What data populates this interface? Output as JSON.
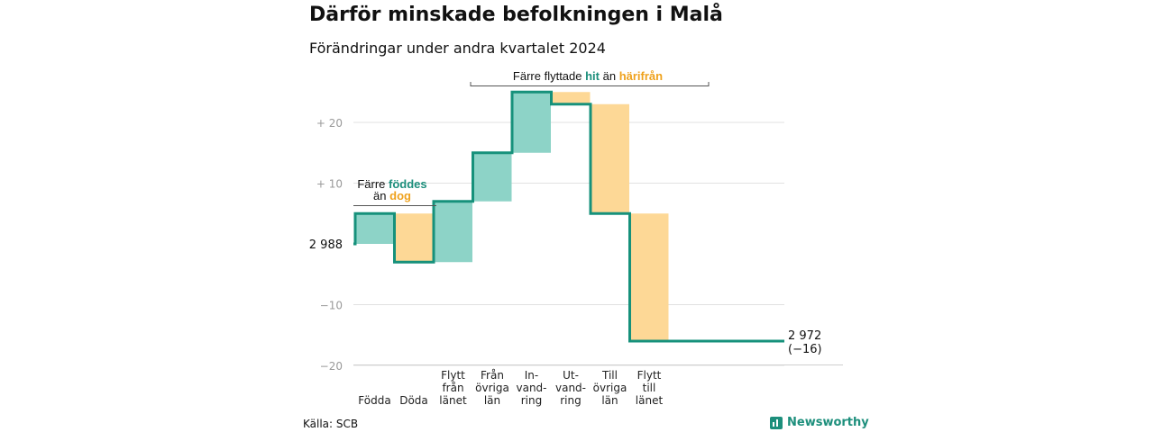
{
  "title": "Därför minskade befolkningen i Malå",
  "subtitle": "Förändringar under andra kvartalet 2024",
  "source": "Källa: SCB",
  "brand": "Newsworthy",
  "colors": {
    "increase": "#8dd3c7",
    "decrease": "#fdd896",
    "line": "#16917b",
    "teal_text": "#1d8f7c",
    "orange_text": "#efa21d"
  },
  "chart_data": {
    "type": "waterfall",
    "start_value": 2988,
    "start_label": "2 988",
    "end_value": 2972,
    "end_label": "2 972",
    "end_change_label": "(−16)",
    "y_ticks": [
      {
        "value": 20,
        "label": "+  20"
      },
      {
        "value": 10,
        "label": "+  10"
      },
      {
        "value": -10,
        "label": "−10"
      },
      {
        "value": -20,
        "label": "−20"
      }
    ],
    "ylim": [
      -20,
      25
    ],
    "steps": [
      {
        "lines": [
          "Födda"
        ],
        "change": 5
      },
      {
        "lines": [
          "Döda"
        ],
        "change": -8
      },
      {
        "lines": [
          "Flytt",
          "från",
          "länet"
        ],
        "change": 10
      },
      {
        "lines": [
          "Från",
          "övriga",
          "län"
        ],
        "change": 8
      },
      {
        "lines": [
          "In-",
          "vand-",
          "ring"
        ],
        "change": 10
      },
      {
        "lines": [
          "Ut-",
          "vand-",
          "ring"
        ],
        "change": -2
      },
      {
        "lines": [
          "Till",
          "övriga",
          "län"
        ],
        "change": -18
      },
      {
        "lines": [
          "Flytt",
          "till",
          "länet"
        ],
        "change": -21
      }
    ],
    "annotations": [
      {
        "parts": [
          {
            "text": "Färre ",
            "color": ""
          },
          {
            "text": "föddes",
            "color": "teal"
          }
        ],
        "parts2": [
          {
            "text": "än ",
            "color": ""
          },
          {
            "text": "dog",
            "color": "orange"
          }
        ]
      },
      {
        "parts": [
          {
            "text": "Färre flyttade ",
            "color": ""
          },
          {
            "text": "hit",
            "color": "teal"
          },
          {
            "text": "  än ",
            "color": ""
          },
          {
            "text": "härifrån",
            "color": "orange"
          }
        ]
      }
    ]
  }
}
